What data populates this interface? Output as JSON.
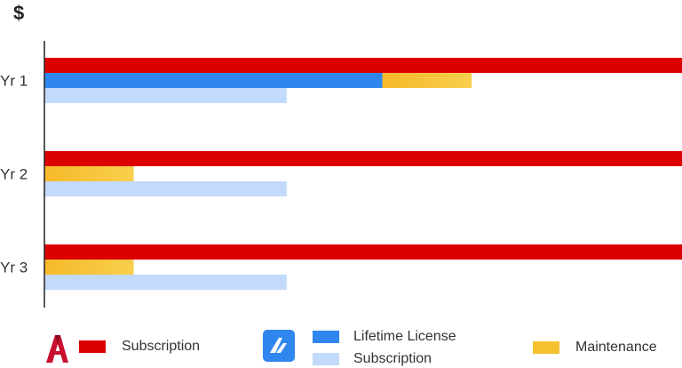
{
  "chart_data": {
    "type": "bar",
    "orientation": "horizontal",
    "ylabel": "$",
    "categories": [
      "Yr 1",
      "Yr 2",
      "Yr 3"
    ],
    "xlim": [
      0,
      100
    ],
    "grid": false,
    "legend_position": "bottom",
    "series": [
      {
        "name": "Subscription",
        "group": "autocad",
        "color": "#dd0000",
        "values": [
          100,
          100,
          100
        ]
      },
      {
        "name": "Lifetime License",
        "group": "bricscad",
        "color": "#2f86ee",
        "values": [
          53,
          0,
          0
        ]
      },
      {
        "name": "Maintenance",
        "group": "bricscad",
        "color": "#f5c12f",
        "values": [
          14,
          14,
          14
        ]
      },
      {
        "name": "Subscription",
        "group": "bricscad",
        "color": "#c2dafb",
        "values": [
          38,
          38,
          38
        ]
      }
    ]
  },
  "legend": {
    "autocad_logo": "autocad-logo-icon",
    "bricscad_logo": "bricscad-logo-icon",
    "autocad_subscription": "Subscription",
    "bricscad_lifetime": "Lifetime License",
    "bricscad_subscription": "Subscription",
    "maintenance": "Maintenance"
  },
  "colors": {
    "red": "#dd0000",
    "blue": "#2f86ee",
    "light_blue": "#c2dafb",
    "yellow": "#f5c12f"
  }
}
